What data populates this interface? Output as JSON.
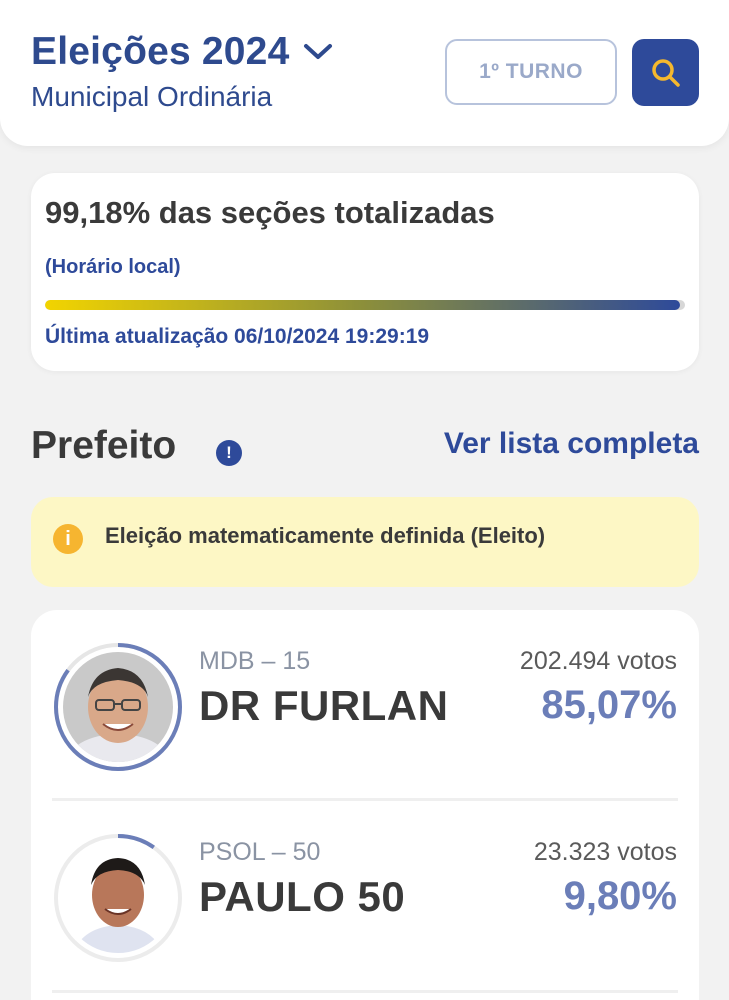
{
  "header": {
    "title": "Eleições 2024",
    "subtitle": "Municipal Ordinária",
    "turno_label": "1º TURNO",
    "search_icon": "search-icon",
    "dropdown_icon": "chevron-down-icon"
  },
  "progress": {
    "title": "99,18% das seções totalizadas",
    "local_label": "(Horário local)",
    "percent": 99.18,
    "update_label": "Última atualização 06/10/2024 19:29:19"
  },
  "section": {
    "title": "Prefeito",
    "info_icon": "!",
    "link_label": "Ver lista completa"
  },
  "alert": {
    "icon": "i",
    "text": "Eleição matematicamente definida (Eleito)"
  },
  "candidates": [
    {
      "party": "MDB – 15",
      "name": "DR FURLAN",
      "votes": "202.494 votos",
      "percent_label": "85,07%",
      "percent": 85.07
    },
    {
      "party": "PSOL – 50",
      "name": "PAULO 50",
      "votes": "23.323 votos",
      "percent_label": "9,80%",
      "percent": 9.8
    }
  ],
  "colors": {
    "primary": "#2e4a9a",
    "ring": "#6b7eb8",
    "alert_bg": "#fdf7c5",
    "alert_icon": "#f6b530"
  }
}
